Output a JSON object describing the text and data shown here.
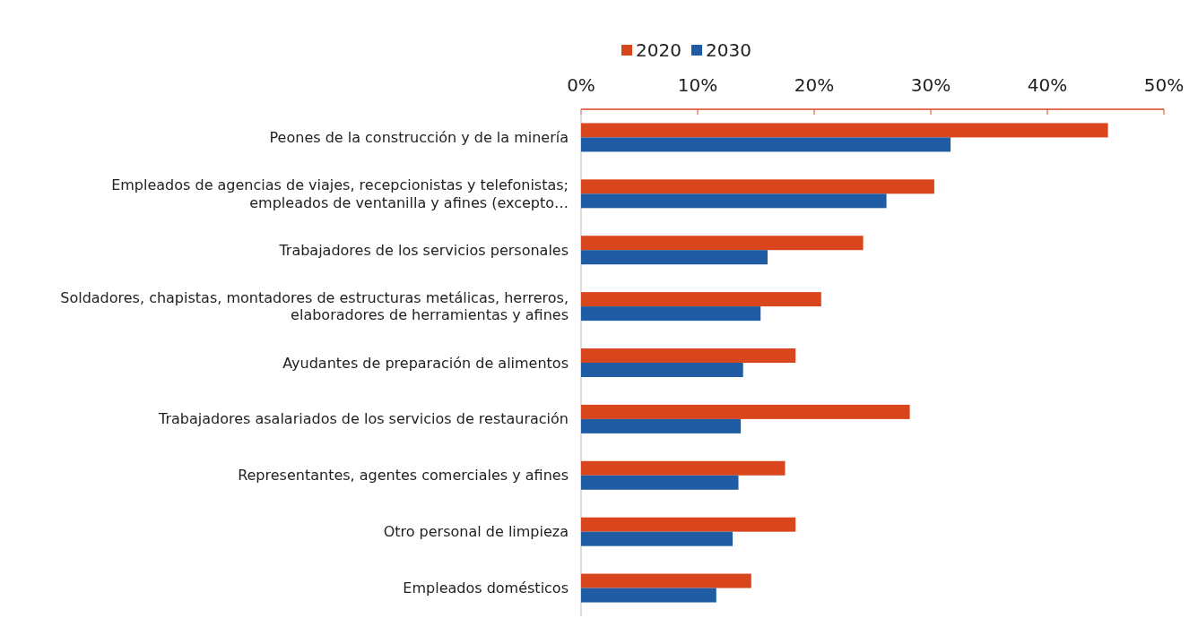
{
  "chart_data": {
    "type": "bar",
    "orientation": "horizontal",
    "categories": [
      "Peones de la construcción y de la minería",
      "Empleados de agencias de viajes, recepcionistas y telefonistas; empleados de ventanilla y afines (excepto…",
      "Trabajadores de los servicios personales",
      "Soldadores, chapistas, montadores de estructuras metálicas, herreros, elaboradores de herramientas y afines",
      "Ayudantes de preparación de alimentos",
      "Trabajadores asalariados de los servicios de restauración",
      "Representantes, agentes comerciales y afines",
      "Otro personal de limpieza",
      "Empleados domésticos"
    ],
    "series": [
      {
        "name": "2020",
        "color": "#d9461e",
        "values": [
          45.2,
          30.3,
          24.2,
          20.6,
          18.4,
          28.2,
          17.5,
          18.4,
          14.6
        ]
      },
      {
        "name": "2030",
        "color": "#1f5ca3",
        "values": [
          31.7,
          26.2,
          16.0,
          15.4,
          13.9,
          13.7,
          13.5,
          13.0,
          11.6
        ]
      }
    ],
    "xlim": [
      0,
      50
    ],
    "xticks": [
      {
        "value": 0,
        "label": "0%"
      },
      {
        "value": 10,
        "label": "10%"
      },
      {
        "value": 20,
        "label": "20%"
      },
      {
        "value": 30,
        "label": "30%"
      },
      {
        "value": 40,
        "label": "40%"
      },
      {
        "value": 50,
        "label": "50%"
      }
    ],
    "legend": "top",
    "grid": false
  }
}
